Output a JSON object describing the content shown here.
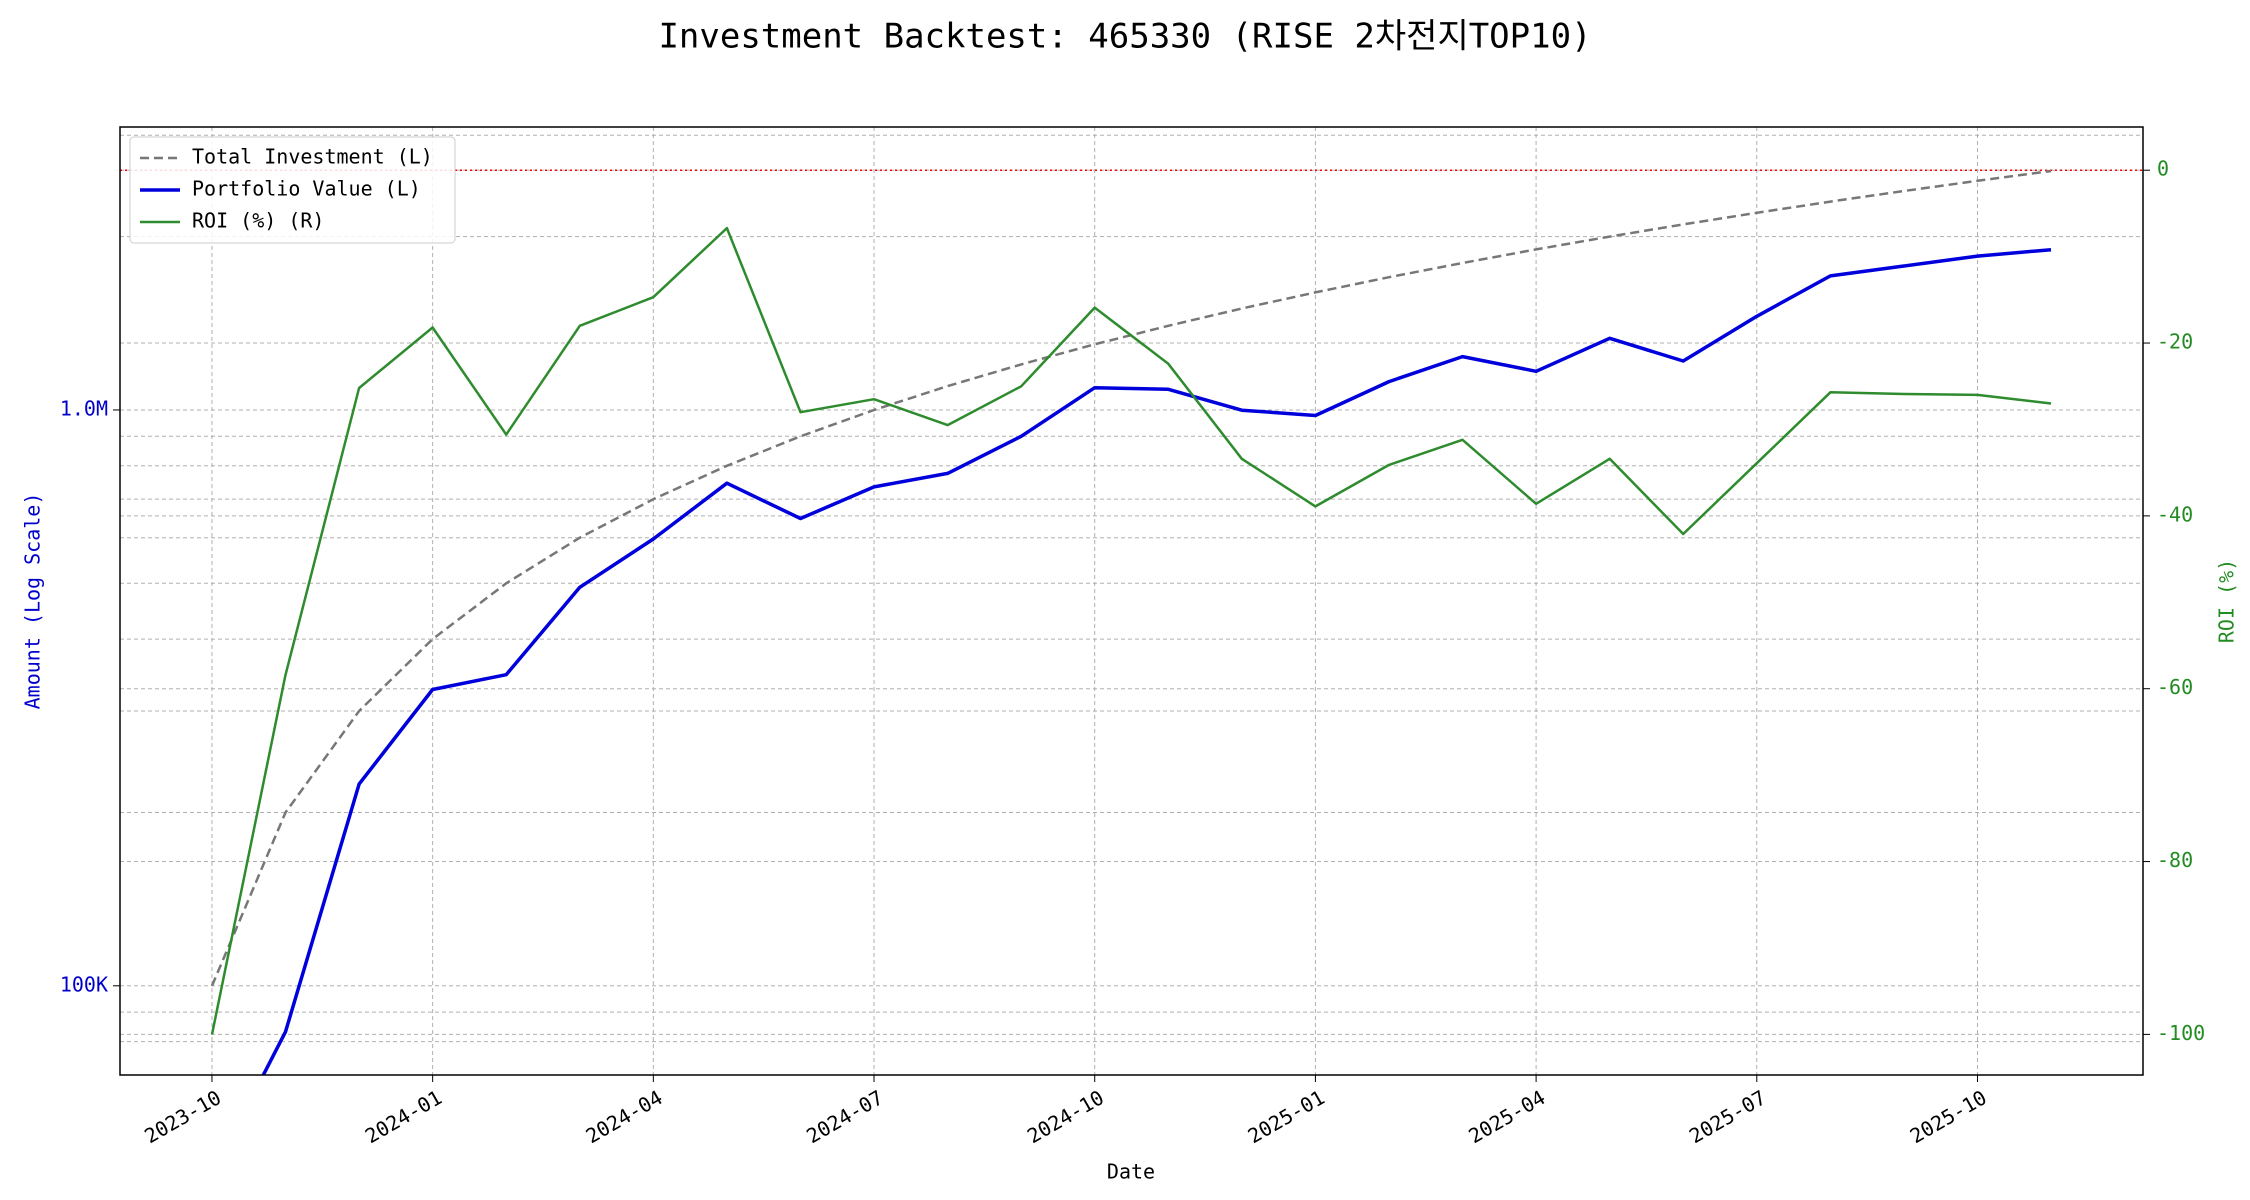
{
  "chart_data": {
    "type": "line",
    "title": "Investment Backtest: 465330 (RISE 2차전지TOP10)",
    "xlabel": "Date",
    "ylabel": "Amount (Log Scale)",
    "y2label": "ROI (%)",
    "ylabel_color": "#0000cc",
    "y2label_color": "#228b22",
    "x": [
      "2023-10",
      "2023-11",
      "2023-12",
      "2024-01",
      "2024-02",
      "2024-03",
      "2024-04",
      "2024-05",
      "2024-06",
      "2024-07",
      "2024-08",
      "2024-09",
      "2024-10",
      "2024-11",
      "2024-12",
      "2025-01",
      "2025-02",
      "2025-03",
      "2025-04",
      "2025-05",
      "2025-06",
      "2025-07",
      "2025-08",
      "2025-09",
      "2025-10",
      "2025-11"
    ],
    "xticks": [
      "2023-10",
      "2024-01",
      "2024-04",
      "2024-07",
      "2024-10",
      "2025-01",
      "2025-04",
      "2025-07",
      "2025-10"
    ],
    "series": [
      {
        "name": "Total Investment (L)",
        "color": "#777777",
        "dash": true,
        "width": 2.5,
        "values": [
          100000,
          200000,
          300000,
          400000,
          500000,
          600000,
          700000,
          800000,
          900000,
          1000000,
          1100000,
          1200000,
          1300000,
          1400000,
          1500000,
          1600000,
          1700000,
          1800000,
          1900000,
          2000000,
          2100000,
          2200000,
          2300000,
          2400000,
          2500000,
          2600000
        ]
      },
      {
        "name": "Portfolio Value (L)",
        "color": "#0000dd",
        "dash": false,
        "width": 3.5,
        "values": [
          0,
          83200,
          224000,
          327000,
          347000,
          492000,
          597000,
          746000,
          648000,
          735000,
          776000,
          900000,
          1093000,
          1086000,
          999000,
          978000,
          1120000,
          1238000,
          1167000,
          1332000,
          1216000,
          1454000,
          1709000,
          1778000,
          1850000,
          1898000
        ]
      },
      {
        "name": "ROI (%) (R)",
        "color": "#2e8b2e",
        "dash": false,
        "width": 2.5,
        "axis": "y2",
        "values": [
          -100,
          -58.4,
          -25.2,
          -18.2,
          -30.6,
          -18.0,
          -14.7,
          -6.7,
          -28.0,
          -26.5,
          -29.5,
          -25.0,
          -15.9,
          -22.4,
          -33.4,
          -38.9,
          -34.1,
          -31.2,
          -38.6,
          -33.4,
          -42.1,
          -33.9,
          -25.7,
          -25.9,
          -26.0,
          -27.0
        ]
      }
    ],
    "log_y": true,
    "ylim": [
      70000,
      3100000
    ],
    "yticks": [
      {
        "value": 100000,
        "label": "100K"
      },
      {
        "value": 1000000,
        "label": "1.0M"
      }
    ],
    "y2lim": [
      -104.7,
      5.0
    ],
    "y2ticks": [
      0,
      -20,
      -40,
      -60,
      -80,
      -100
    ],
    "reference_line": {
      "axis": "y2",
      "value": 0,
      "color": "#ff0000"
    },
    "grid": true,
    "minor_grid": true,
    "legend": "upper-left"
  }
}
